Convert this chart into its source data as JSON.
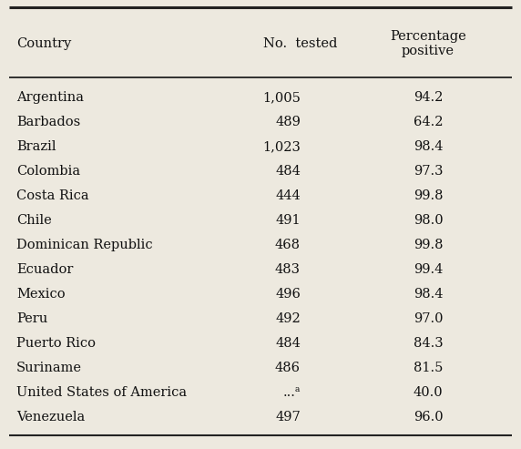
{
  "columns": [
    "Country",
    "No.  tested",
    "Percentage\npositive"
  ],
  "col_align": [
    "left",
    "center",
    "center"
  ],
  "rows": [
    [
      "Argentina",
      "1,005",
      "94.2"
    ],
    [
      "Barbados",
      "489",
      "64.2"
    ],
    [
      "Brazil",
      "1,023",
      "98.4"
    ],
    [
      "Colombia",
      "484",
      "97.3"
    ],
    [
      "Costa Rica",
      "444",
      "99.8"
    ],
    [
      "Chile",
      "491",
      "98.0"
    ],
    [
      "Dominican Republic",
      "468",
      "99.8"
    ],
    [
      "Ecuador",
      "483",
      "99.4"
    ],
    [
      "Mexico",
      "496",
      "98.4"
    ],
    [
      "Peru",
      "492",
      "97.0"
    ],
    [
      "Puerto Rico",
      "484",
      "84.3"
    ],
    [
      "Suriname",
      "486",
      "81.5"
    ],
    [
      "United States of America",
      "...ᵃ",
      "40.0"
    ],
    [
      "Venezuela",
      "497",
      "96.0"
    ]
  ],
  "font_size": 10.5,
  "header_font_size": 10.5,
  "bg_color": "#ede9df",
  "text_color": "#111111",
  "line_color": "#222222"
}
